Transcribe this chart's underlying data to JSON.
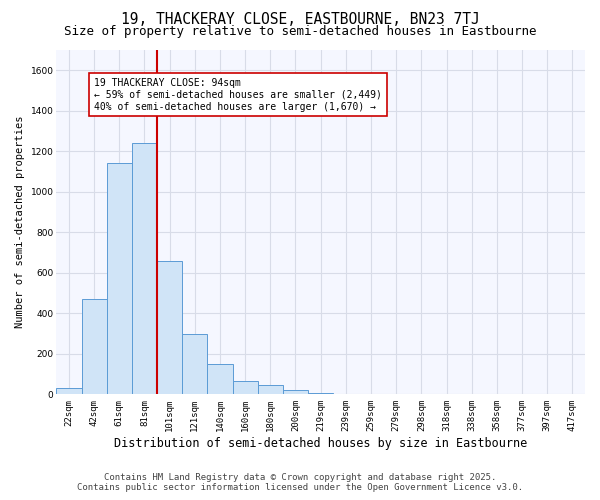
{
  "title1": "19, THACKERAY CLOSE, EASTBOURNE, BN23 7TJ",
  "title2": "Size of property relative to semi-detached houses in Eastbourne",
  "xlabel": "Distribution of semi-detached houses by size in Eastbourne",
  "ylabel": "Number of semi-detached properties",
  "bin_labels": [
    "22sqm",
    "42sqm",
    "61sqm",
    "81sqm",
    "101sqm",
    "121sqm",
    "140sqm",
    "160sqm",
    "180sqm",
    "200sqm",
    "219sqm",
    "239sqm",
    "259sqm",
    "279sqm",
    "298sqm",
    "318sqm",
    "338sqm",
    "358sqm",
    "377sqm",
    "397sqm",
    "417sqm"
  ],
  "bar_heights": [
    30,
    470,
    1140,
    1240,
    660,
    300,
    150,
    65,
    45,
    20,
    5,
    3,
    2,
    2,
    1,
    1,
    1,
    0,
    0,
    0,
    2
  ],
  "bar_color": "#d0e4f7",
  "bar_edge_color": "#5b9bd5",
  "vline_x_bin": 4,
  "vline_color": "#cc0000",
  "annotation_text": "19 THACKERAY CLOSE: 94sqm\n← 59% of semi-detached houses are smaller (2,449)\n40% of semi-detached houses are larger (1,670) →",
  "annotation_box_color": "#ffffff",
  "annotation_box_edge": "#cc0000",
  "ylim": [
    0,
    1700
  ],
  "yticks": [
    0,
    200,
    400,
    600,
    800,
    1000,
    1200,
    1400,
    1600
  ],
  "footer1": "Contains HM Land Registry data © Crown copyright and database right 2025.",
  "footer2": "Contains public sector information licensed under the Open Government Licence v3.0.",
  "bg_color": "#ffffff",
  "plot_bg_color": "#f5f7ff",
  "grid_color": "#d8dce8",
  "title1_fontsize": 10.5,
  "title2_fontsize": 9,
  "xlabel_fontsize": 8.5,
  "ylabel_fontsize": 7.5,
  "tick_fontsize": 6.5,
  "annot_fontsize": 7,
  "footer_fontsize": 6.5
}
